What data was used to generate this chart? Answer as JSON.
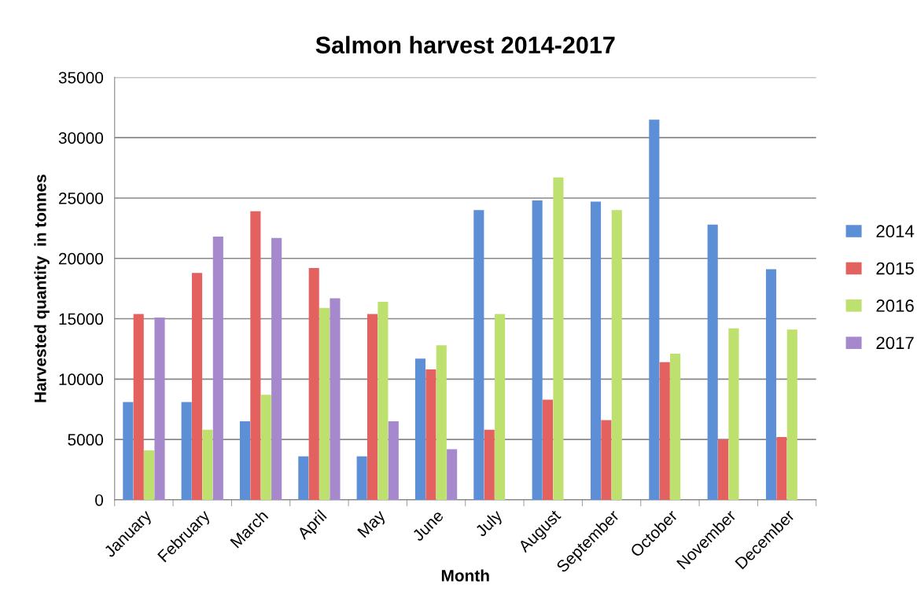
{
  "chart_data": {
    "type": "bar",
    "title": "Salmon harvest 2014-2017",
    "xlabel": "Month",
    "ylabel": "Harvested quantity  in tonnes",
    "categories": [
      "January",
      "February",
      "March",
      "April",
      "May",
      "June",
      "July",
      "August",
      "September",
      "October",
      "November",
      "December"
    ],
    "series": [
      {
        "name": "2014",
        "color": "#5d8fd6",
        "values": [
          8100,
          8100,
          6500,
          3600,
          3600,
          11700,
          24000,
          24800,
          24700,
          31500,
          22800,
          19100
        ]
      },
      {
        "name": "2015",
        "color": "#e36260",
        "values": [
          15400,
          18800,
          23900,
          19200,
          15400,
          10800,
          5800,
          8300,
          6600,
          11400,
          5000,
          5200
        ]
      },
      {
        "name": "2016",
        "color": "#bde06f",
        "values": [
          4100,
          5800,
          8700,
          15900,
          16400,
          12800,
          15400,
          26700,
          24000,
          12100,
          14200,
          14100
        ]
      },
      {
        "name": "2017",
        "color": "#a589cc",
        "values": [
          15100,
          21800,
          21700,
          16700,
          6500,
          4200,
          null,
          null,
          null,
          null,
          null,
          null
        ]
      }
    ],
    "ylim": [
      0,
      35000
    ],
    "yticks": [
      0,
      5000,
      10000,
      15000,
      20000,
      25000,
      30000,
      35000
    ],
    "grid": "y",
    "legend": "right"
  }
}
